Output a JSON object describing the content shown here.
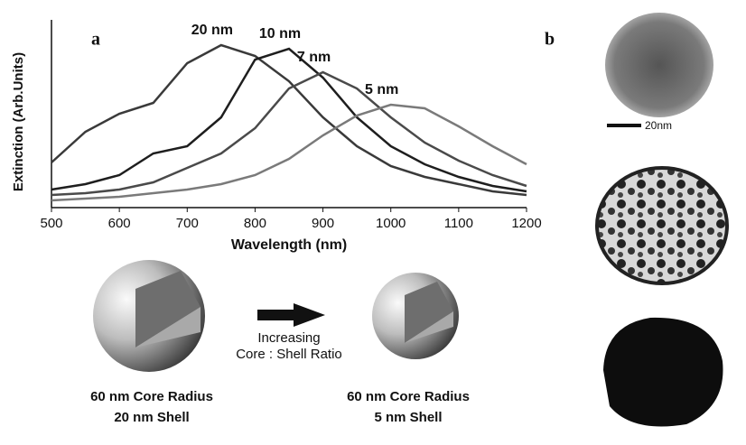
{
  "chart_data": {
    "type": "line",
    "panel_label": "a",
    "x_label": "Wavelength (nm)",
    "y_label": "Extinction (Arb.Units)",
    "x": [
      500,
      550,
      600,
      650,
      700,
      750,
      800,
      850,
      900,
      950,
      1000,
      1050,
      1100,
      1150,
      1200
    ],
    "xlim": [
      500,
      1200
    ],
    "xticks": [
      500,
      600,
      700,
      800,
      900,
      1000,
      1100,
      1200
    ],
    "ylim": [
      0,
      1
    ],
    "series": [
      {
        "name": "20 nm",
        "color": "#3a3a3a",
        "values": [
          0.25,
          0.42,
          0.52,
          0.58,
          0.8,
          0.9,
          0.84,
          0.7,
          0.5,
          0.34,
          0.23,
          0.17,
          0.13,
          0.09,
          0.07
        ]
      },
      {
        "name": "10 nm",
        "color": "#1e1e1e",
        "values": [
          0.1,
          0.13,
          0.18,
          0.3,
          0.34,
          0.5,
          0.82,
          0.88,
          0.72,
          0.5,
          0.34,
          0.24,
          0.17,
          0.12,
          0.09
        ]
      },
      {
        "name": "7 nm",
        "color": "#4a4a4a",
        "values": [
          0.07,
          0.08,
          0.1,
          0.14,
          0.22,
          0.3,
          0.44,
          0.66,
          0.75,
          0.66,
          0.5,
          0.36,
          0.26,
          0.18,
          0.12
        ]
      },
      {
        "name": "5 nm",
        "color": "#7a7a7a",
        "values": [
          0.04,
          0.05,
          0.06,
          0.08,
          0.1,
          0.13,
          0.18,
          0.27,
          0.4,
          0.51,
          0.57,
          0.55,
          0.45,
          0.34,
          0.24
        ]
      }
    ]
  },
  "figure": {
    "panel_b_label": "b",
    "scale_bar": "20nm",
    "arrow_text": [
      "Increasing",
      "Core : Shell Ratio"
    ],
    "left_caption": [
      "60 nm Core Radius",
      "20 nm Shell"
    ],
    "right_caption": [
      "60 nm Core Radius",
      "5 nm Shell"
    ]
  }
}
